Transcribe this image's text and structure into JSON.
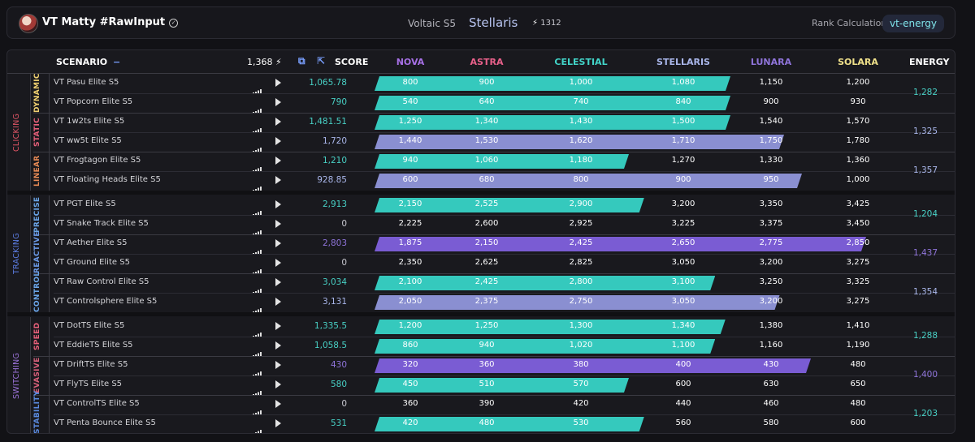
{
  "header": {
    "username": "VT Matty #RawInput",
    "season": "Voltaic S5",
    "rank": "Stellaris",
    "rank_score": "1312",
    "rank_calc_label": "Rank Calculation",
    "rank_calc_value": "vt-energy"
  },
  "table_header": {
    "scenario": "SCENARIO",
    "collapse": "−",
    "total": "1,368",
    "score": "SCORE",
    "energy": "ENERGY"
  },
  "tiers": [
    {
      "name": "NOVA",
      "color": "#a770e6"
    },
    {
      "name": "ASTRA",
      "color": "#e8608a"
    },
    {
      "name": "CELESTIAL",
      "color": "#42d5c9"
    },
    {
      "name": "STELLARIS",
      "color": "#a9b6ea"
    },
    {
      "name": "LUNARA",
      "color": "#8f74da"
    },
    {
      "name": "SOLARA",
      "color": "#efe08a"
    }
  ],
  "bar_colors": {
    "teal": "#35c9bd",
    "lav": "#8a8fd1",
    "purple": "#7a5cd3"
  },
  "categories": [
    {
      "name": "CLICKING",
      "color": "#e05565",
      "subs": [
        {
          "name": "DYNAMIC",
          "color": "#f0d070",
          "energy": "1,282",
          "energy_color": "#48d0c5",
          "rows": [
            {
              "scenario": "VT Pasu Elite S5",
              "score": "1,065.78",
              "score_color": "#48d0c5",
              "fill": 4,
              "bar": "teal",
              "tiers": [
                "800",
                "900",
                "1,000",
                "1,080",
                "1,150",
                "1,200"
              ]
            },
            {
              "scenario": "VT Popcorn Elite S5",
              "score": "790",
              "score_color": "#48d0c5",
              "fill": 4,
              "bar": "teal",
              "tiers": [
                "540",
                "640",
                "740",
                "840",
                "900",
                "930"
              ]
            }
          ]
        },
        {
          "name": "STATIC",
          "color": "#e8607a",
          "energy": "1,325",
          "energy_color": "#a9b6ea",
          "rows": [
            {
              "scenario": "VT 1w2ts Elite S5",
              "score": "1,481.51",
              "score_color": "#48d0c5",
              "fill": 4,
              "bar": "teal",
              "tiers": [
                "1,250",
                "1,340",
                "1,430",
                "1,500",
                "1,540",
                "1,570"
              ]
            },
            {
              "scenario": "VT ww5t Elite S5",
              "score": "1,720",
              "score_color": "#a9b6ea",
              "fill": 4.6,
              "bar": "lav",
              "tiers": [
                "1,440",
                "1,530",
                "1,620",
                "1,710",
                "1,750",
                "1,780"
              ]
            }
          ]
        },
        {
          "name": "LINEAR",
          "color": "#e88a55",
          "energy": "1,357",
          "energy_color": "#a9b6ea",
          "rows": [
            {
              "scenario": "VT Frogtagon Elite S5",
              "score": "1,210",
              "score_color": "#48d0c5",
              "fill": 3,
              "bar": "teal",
              "tiers": [
                "940",
                "1,060",
                "1,180",
                "1,270",
                "1,330",
                "1,360"
              ]
            },
            {
              "scenario": "VT Floating Heads Elite S5",
              "score": "928.85",
              "score_color": "#a9b6ea",
              "fill": 4.8,
              "bar": "lav",
              "tiers": [
                "600",
                "680",
                "800",
                "900",
                "950",
                "1,000"
              ]
            }
          ]
        }
      ]
    },
    {
      "name": "TRACKING",
      "color": "#5b7be0",
      "subs": [
        {
          "name": "PRECISE",
          "color": "#6aa5e8",
          "energy": "1,204",
          "energy_color": "#48d0c5",
          "rows": [
            {
              "scenario": "VT PGT Elite S5",
              "score": "2,913",
              "score_color": "#48d0c5",
              "fill": 3.15,
              "bar": "teal",
              "tiers": [
                "2,150",
                "2,525",
                "2,900",
                "3,200",
                "3,350",
                "3,425"
              ]
            },
            {
              "scenario": "VT Snake Track Elite S5",
              "score": "0",
              "score_color": "#c8c8d0",
              "fill": 0,
              "bar": "teal",
              "tiers": [
                "2,225",
                "2,600",
                "2,925",
                "3,225",
                "3,375",
                "3,450"
              ]
            }
          ]
        },
        {
          "name": "REACTIVE",
          "color": "#6b9ae8",
          "energy": "1,437",
          "energy_color": "#8f74da",
          "rows": [
            {
              "scenario": "VT Aether Elite S5",
              "score": "2,803",
              "score_color": "#8f74da",
              "fill": 5.6,
              "bar": "purple",
              "tiers": [
                "1,875",
                "2,150",
                "2,425",
                "2,650",
                "2,775",
                "2,850"
              ]
            },
            {
              "scenario": "VT Ground Elite S5",
              "score": "0",
              "score_color": "#c8c8d0",
              "fill": 0,
              "bar": "teal",
              "tiers": [
                "2,350",
                "2,625",
                "2,825",
                "3,050",
                "3,200",
                "3,275"
              ]
            }
          ]
        },
        {
          "name": "CONTROL",
          "color": "#6aa5e8",
          "energy": "1,354",
          "energy_color": "#a9b6ea",
          "rows": [
            {
              "scenario": "VT Raw Control Elite S5",
              "score": "3,034",
              "score_color": "#48d0c5",
              "fill": 3.85,
              "bar": "teal",
              "tiers": [
                "2,100",
                "2,425",
                "2,800",
                "3,100",
                "3,250",
                "3,325"
              ]
            },
            {
              "scenario": "VT Controlsphere Elite S5",
              "score": "3,131",
              "score_color": "#a9b6ea",
              "fill": 4.55,
              "bar": "lav",
              "tiers": [
                "2,050",
                "2,375",
                "2,750",
                "3,050",
                "3,200",
                "3,275"
              ]
            }
          ]
        }
      ]
    },
    {
      "name": "SWITCHING",
      "color": "#9a72d8",
      "subs": [
        {
          "name": "SPEED",
          "color": "#e8607a",
          "energy": "1,288",
          "energy_color": "#48d0c5",
          "rows": [
            {
              "scenario": "VT DotTS Elite S5",
              "score": "1,335.5",
              "score_color": "#48d0c5",
              "fill": 3.95,
              "bar": "teal",
              "tiers": [
                "1,200",
                "1,250",
                "1,300",
                "1,340",
                "1,380",
                "1,410"
              ]
            },
            {
              "scenario": "VT EddieTS Elite S5",
              "score": "1,058.5",
              "score_color": "#48d0c5",
              "fill": 3.85,
              "bar": "teal",
              "tiers": [
                "860",
                "940",
                "1,020",
                "1,100",
                "1,160",
                "1,190"
              ]
            }
          ]
        },
        {
          "name": "EVASIVE",
          "color": "#d8607a",
          "energy": "1,400",
          "energy_color": "#8f74da",
          "rows": [
            {
              "scenario": "VT DriftTS Elite S5",
              "score": "430",
              "score_color": "#8f74da",
              "fill": 4.9,
              "bar": "purple",
              "tiers": [
                "320",
                "360",
                "380",
                "400",
                "430",
                "480"
              ]
            },
            {
              "scenario": "VT FlyTS Elite S5",
              "score": "580",
              "score_color": "#48d0c5",
              "fill": 3,
              "bar": "teal",
              "tiers": [
                "450",
                "510",
                "570",
                "600",
                "630",
                "650"
              ]
            }
          ]
        },
        {
          "name": "STABILITY",
          "color": "#5a8ae0",
          "energy": "1,203",
          "energy_color": "#48d0c5",
          "rows": [
            {
              "scenario": "VT ControlTS Elite S5",
              "score": "0",
              "score_color": "#c8c8d0",
              "fill": 0,
              "bar": "teal",
              "tiers": [
                "360",
                "390",
                "420",
                "440",
                "460",
                "480"
              ]
            },
            {
              "scenario": "VT Penta Bounce Elite S5",
              "score": "531",
              "score_color": "#48d0c5",
              "fill": 3.15,
              "bar": "teal",
              "tiers": [
                "420",
                "480",
                "530",
                "560",
                "580",
                "600"
              ]
            }
          ]
        }
      ]
    }
  ]
}
